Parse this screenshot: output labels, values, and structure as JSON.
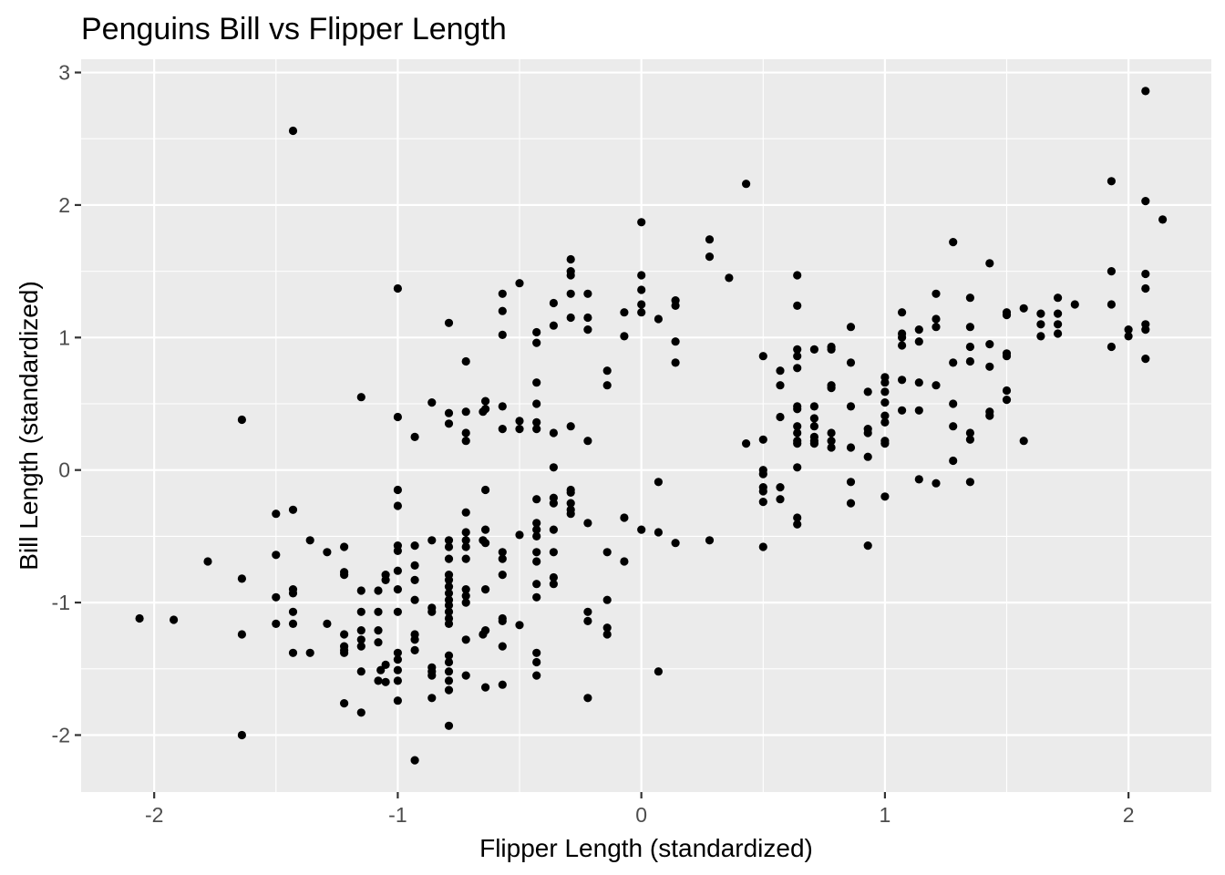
{
  "chart_data": {
    "type": "scatter",
    "title": "Penguins Bill vs Flipper Length",
    "xlabel": "Flipper Length (standardized)",
    "ylabel": "Bill Length (standardized)",
    "xlim": [
      -2.3,
      2.34
    ],
    "ylim": [
      -2.43,
      3.1
    ],
    "x_ticks": [
      -2,
      -1,
      0,
      1,
      2
    ],
    "x_tick_labels": [
      "-2",
      "-1",
      "0",
      "1",
      "2"
    ],
    "y_ticks": [
      -2,
      -1,
      0,
      1,
      2,
      3
    ],
    "y_tick_labels": [
      "-2",
      "-1",
      "0",
      "1",
      "2",
      "3"
    ],
    "grid": true,
    "point_color": "#000000",
    "panel_color": "#ebebeb",
    "points": [
      [
        -2.06,
        -1.12
      ],
      [
        -1.92,
        -1.13
      ],
      [
        -1.78,
        -0.69
      ],
      [
        -1.64,
        0.38
      ],
      [
        -1.64,
        -0.82
      ],
      [
        -1.64,
        -1.24
      ],
      [
        -1.64,
        -2.0
      ],
      [
        -1.5,
        -0.33
      ],
      [
        -1.5,
        -0.64
      ],
      [
        -1.5,
        -0.96
      ],
      [
        -1.5,
        -1.16
      ],
      [
        -1.43,
        2.56
      ],
      [
        -1.43,
        -0.3
      ],
      [
        -1.43,
        -0.9
      ],
      [
        -1.43,
        -0.93
      ],
      [
        -1.43,
        -1.07
      ],
      [
        -1.43,
        -1.16
      ],
      [
        -1.43,
        -1.38
      ],
      [
        -1.36,
        -0.53
      ],
      [
        -1.36,
        -1.38
      ],
      [
        -1.29,
        -0.62
      ],
      [
        -1.29,
        -1.16
      ],
      [
        -1.22,
        -0.58
      ],
      [
        -1.22,
        -0.77
      ],
      [
        -1.22,
        -0.79
      ],
      [
        -1.22,
        -1.24
      ],
      [
        -1.22,
        -1.33
      ],
      [
        -1.22,
        -1.36
      ],
      [
        -1.22,
        -1.38
      ],
      [
        -1.22,
        -1.76
      ],
      [
        -1.15,
        0.55
      ],
      [
        -1.15,
        -0.91
      ],
      [
        -1.15,
        -1.07
      ],
      [
        -1.15,
        -1.21
      ],
      [
        -1.15,
        -1.28
      ],
      [
        -1.15,
        -1.33
      ],
      [
        -1.15,
        -1.52
      ],
      [
        -1.15,
        -1.83
      ],
      [
        -1.08,
        -0.91
      ],
      [
        -1.08,
        -1.07
      ],
      [
        -1.08,
        -1.21
      ],
      [
        -1.08,
        -1.3
      ],
      [
        -1.08,
        -1.59
      ],
      [
        -1.07,
        -1.51
      ],
      [
        -1.05,
        -0.79
      ],
      [
        -1.05,
        -0.83
      ],
      [
        -1.05,
        -1.47
      ],
      [
        -1.05,
        -1.6
      ],
      [
        -1.0,
        1.37
      ],
      [
        -1.0,
        0.4
      ],
      [
        -1.0,
        -0.15
      ],
      [
        -1.0,
        -0.27
      ],
      [
        -1.0,
        -0.57
      ],
      [
        -1.0,
        -0.61
      ],
      [
        -1.0,
        -0.76
      ],
      [
        -1.0,
        -0.9
      ],
      [
        -1.0,
        -1.07
      ],
      [
        -1.0,
        -1.38
      ],
      [
        -1.0,
        -1.43
      ],
      [
        -1.0,
        -1.51
      ],
      [
        -1.0,
        -1.59
      ],
      [
        -1.0,
        -1.74
      ],
      [
        -0.93,
        0.25
      ],
      [
        -0.93,
        -0.57
      ],
      [
        -0.93,
        -0.72
      ],
      [
        -0.93,
        -0.83
      ],
      [
        -0.93,
        -0.98
      ],
      [
        -0.93,
        -1.24
      ],
      [
        -0.93,
        -1.28
      ],
      [
        -0.93,
        -1.36
      ],
      [
        -0.93,
        -2.19
      ],
      [
        -0.86,
        0.51
      ],
      [
        -0.86,
        -0.53
      ],
      [
        -0.86,
        -1.04
      ],
      [
        -0.86,
        -1.07
      ],
      [
        -0.86,
        -1.49
      ],
      [
        -0.86,
        -1.52
      ],
      [
        -0.86,
        -1.55
      ],
      [
        -0.86,
        -1.72
      ],
      [
        -0.79,
        1.11
      ],
      [
        -0.79,
        0.43
      ],
      [
        -0.79,
        0.35
      ],
      [
        -0.79,
        -0.53
      ],
      [
        -0.79,
        -0.58
      ],
      [
        -0.79,
        -0.67
      ],
      [
        -0.79,
        -0.79
      ],
      [
        -0.79,
        -0.83
      ],
      [
        -0.79,
        -0.88
      ],
      [
        -0.79,
        -0.93
      ],
      [
        -0.79,
        -0.98
      ],
      [
        -0.79,
        -1.02
      ],
      [
        -0.79,
        -1.07
      ],
      [
        -0.79,
        -1.12
      ],
      [
        -0.79,
        -1.16
      ],
      [
        -0.79,
        -1.4
      ],
      [
        -0.79,
        -1.45
      ],
      [
        -0.79,
        -1.52
      ],
      [
        -0.79,
        -1.59
      ],
      [
        -0.79,
        -1.66
      ],
      [
        -0.79,
        -1.93
      ],
      [
        -0.72,
        0.82
      ],
      [
        -0.72,
        0.44
      ],
      [
        -0.72,
        0.28
      ],
      [
        -0.72,
        0.22
      ],
      [
        -0.72,
        -0.32
      ],
      [
        -0.72,
        -0.47
      ],
      [
        -0.72,
        -0.53
      ],
      [
        -0.72,
        -0.58
      ],
      [
        -0.72,
        -0.67
      ],
      [
        -0.72,
        -0.9
      ],
      [
        -0.72,
        -0.95
      ],
      [
        -0.72,
        -1.0
      ],
      [
        -0.72,
        -1.28
      ],
      [
        -0.72,
        -1.55
      ],
      [
        -0.65,
        0.44
      ],
      [
        -0.65,
        -0.53
      ],
      [
        -0.65,
        -1.24
      ],
      [
        -0.64,
        0.52
      ],
      [
        -0.64,
        0.46
      ],
      [
        -0.64,
        -0.15
      ],
      [
        -0.64,
        -0.45
      ],
      [
        -0.64,
        -0.55
      ],
      [
        -0.64,
        -0.9
      ],
      [
        -0.64,
        -1.21
      ],
      [
        -0.64,
        -1.64
      ],
      [
        -0.57,
        1.33
      ],
      [
        -0.57,
        1.2
      ],
      [
        -0.57,
        1.02
      ],
      [
        -0.57,
        0.48
      ],
      [
        -0.57,
        0.31
      ],
      [
        -0.57,
        -0.62
      ],
      [
        -0.57,
        -0.67
      ],
      [
        -0.57,
        -0.79
      ],
      [
        -0.57,
        -1.12
      ],
      [
        -0.57,
        -1.14
      ],
      [
        -0.57,
        -1.33
      ],
      [
        -0.57,
        -1.62
      ],
      [
        -0.5,
        1.41
      ],
      [
        -0.5,
        0.37
      ],
      [
        -0.5,
        0.31
      ],
      [
        -0.5,
        -0.49
      ],
      [
        -0.5,
        -1.17
      ],
      [
        -0.43,
        1.04
      ],
      [
        -0.43,
        0.96
      ],
      [
        -0.43,
        0.66
      ],
      [
        -0.43,
        0.5
      ],
      [
        -0.43,
        0.36
      ],
      [
        -0.43,
        0.31
      ],
      [
        -0.43,
        -0.22
      ],
      [
        -0.43,
        -0.4
      ],
      [
        -0.43,
        -0.45
      ],
      [
        -0.43,
        -0.5
      ],
      [
        -0.43,
        -0.62
      ],
      [
        -0.43,
        -0.69
      ],
      [
        -0.43,
        -0.86
      ],
      [
        -0.43,
        -0.96
      ],
      [
        -0.43,
        -1.38
      ],
      [
        -0.43,
        -1.45
      ],
      [
        -0.43,
        -1.55
      ],
      [
        -0.36,
        1.26
      ],
      [
        -0.36,
        1.09
      ],
      [
        -0.36,
        0.28
      ],
      [
        -0.36,
        0.02
      ],
      [
        -0.36,
        -0.21
      ],
      [
        -0.36,
        -0.25
      ],
      [
        -0.36,
        -0.45
      ],
      [
        -0.36,
        -0.62
      ],
      [
        -0.36,
        -0.81
      ],
      [
        -0.36,
        -0.86
      ],
      [
        -0.29,
        1.59
      ],
      [
        -0.29,
        1.5
      ],
      [
        -0.29,
        1.47
      ],
      [
        -0.29,
        1.33
      ],
      [
        -0.29,
        1.15
      ],
      [
        -0.29,
        0.33
      ],
      [
        -0.29,
        -0.15
      ],
      [
        -0.29,
        -0.17
      ],
      [
        -0.29,
        -0.25
      ],
      [
        -0.29,
        -0.3
      ],
      [
        -0.29,
        -0.33
      ],
      [
        -0.22,
        1.33
      ],
      [
        -0.22,
        1.15
      ],
      [
        -0.22,
        1.06
      ],
      [
        -0.22,
        0.22
      ],
      [
        -0.22,
        -0.4
      ],
      [
        -0.22,
        -1.07
      ],
      [
        -0.22,
        -1.14
      ],
      [
        -0.22,
        -1.72
      ],
      [
        -0.14,
        0.75
      ],
      [
        -0.14,
        0.64
      ],
      [
        -0.14,
        -0.62
      ],
      [
        -0.14,
        -0.98
      ],
      [
        -0.14,
        -1.19
      ],
      [
        -0.14,
        -1.24
      ],
      [
        -0.07,
        1.19
      ],
      [
        -0.07,
        1.01
      ],
      [
        -0.07,
        -0.36
      ],
      [
        -0.07,
        -0.69
      ],
      [
        0.0,
        1.87
      ],
      [
        0.0,
        1.47
      ],
      [
        0.0,
        1.36
      ],
      [
        0.0,
        1.25
      ],
      [
        0.0,
        1.19
      ],
      [
        0.0,
        -0.45
      ],
      [
        0.07,
        1.14
      ],
      [
        0.07,
        -0.09
      ],
      [
        0.07,
        -0.47
      ],
      [
        0.07,
        -1.52
      ],
      [
        0.14,
        1.28
      ],
      [
        0.14,
        1.24
      ],
      [
        0.14,
        0.97
      ],
      [
        0.14,
        0.81
      ],
      [
        0.14,
        -0.55
      ],
      [
        0.28,
        1.74
      ],
      [
        0.28,
        1.61
      ],
      [
        0.28,
        -0.53
      ],
      [
        0.36,
        1.45
      ],
      [
        0.43,
        2.16
      ],
      [
        0.43,
        0.2
      ],
      [
        0.5,
        0.86
      ],
      [
        0.5,
        0.23
      ],
      [
        0.5,
        0.0
      ],
      [
        0.5,
        -0.03
      ],
      [
        0.5,
        -0.13
      ],
      [
        0.5,
        -0.16
      ],
      [
        0.5,
        -0.24
      ],
      [
        0.5,
        -0.58
      ],
      [
        0.57,
        0.75
      ],
      [
        0.57,
        0.64
      ],
      [
        0.57,
        0.4
      ],
      [
        0.57,
        -0.13
      ],
      [
        0.57,
        -0.22
      ],
      [
        0.64,
        1.47
      ],
      [
        0.64,
        1.24
      ],
      [
        0.64,
        0.91
      ],
      [
        0.64,
        0.86
      ],
      [
        0.64,
        0.77
      ],
      [
        0.64,
        0.48
      ],
      [
        0.64,
        0.46
      ],
      [
        0.64,
        0.33
      ],
      [
        0.64,
        0.28
      ],
      [
        0.64,
        0.22
      ],
      [
        0.64,
        0.2
      ],
      [
        0.64,
        0.02
      ],
      [
        0.64,
        -0.36
      ],
      [
        0.64,
        -0.41
      ],
      [
        0.71,
        0.91
      ],
      [
        0.71,
        0.48
      ],
      [
        0.71,
        0.39
      ],
      [
        0.71,
        0.33
      ],
      [
        0.71,
        0.25
      ],
      [
        0.71,
        0.22
      ],
      [
        0.71,
        0.2
      ],
      [
        0.78,
        0.93
      ],
      [
        0.78,
        0.91
      ],
      [
        0.78,
        0.64
      ],
      [
        0.78,
        0.62
      ],
      [
        0.78,
        0.28
      ],
      [
        0.78,
        0.22
      ],
      [
        0.78,
        0.17
      ],
      [
        0.86,
        1.08
      ],
      [
        0.86,
        0.81
      ],
      [
        0.86,
        0.48
      ],
      [
        0.86,
        0.17
      ],
      [
        0.86,
        -0.09
      ],
      [
        0.86,
        -0.25
      ],
      [
        0.93,
        0.59
      ],
      [
        0.93,
        0.31
      ],
      [
        0.93,
        0.28
      ],
      [
        0.93,
        0.1
      ],
      [
        0.93,
        -0.57
      ],
      [
        1.0,
        0.7
      ],
      [
        1.0,
        0.66
      ],
      [
        1.0,
        0.59
      ],
      [
        1.0,
        0.51
      ],
      [
        1.0,
        0.41
      ],
      [
        1.0,
        0.36
      ],
      [
        1.0,
        0.22
      ],
      [
        1.0,
        0.2
      ],
      [
        1.0,
        -0.2
      ],
      [
        1.07,
        1.19
      ],
      [
        1.07,
        1.03
      ],
      [
        1.07,
        1.0
      ],
      [
        1.07,
        0.94
      ],
      [
        1.07,
        0.68
      ],
      [
        1.07,
        0.45
      ],
      [
        1.14,
        1.06
      ],
      [
        1.14,
        0.97
      ],
      [
        1.14,
        0.66
      ],
      [
        1.14,
        0.45
      ],
      [
        1.14,
        -0.07
      ],
      [
        1.21,
        1.33
      ],
      [
        1.21,
        1.14
      ],
      [
        1.21,
        1.08
      ],
      [
        1.21,
        0.64
      ],
      [
        1.21,
        -0.1
      ],
      [
        1.28,
        1.72
      ],
      [
        1.28,
        0.81
      ],
      [
        1.28,
        0.5
      ],
      [
        1.28,
        0.33
      ],
      [
        1.28,
        0.07
      ],
      [
        1.35,
        1.3
      ],
      [
        1.35,
        1.08
      ],
      [
        1.35,
        0.93
      ],
      [
        1.35,
        0.82
      ],
      [
        1.35,
        0.28
      ],
      [
        1.35,
        0.23
      ],
      [
        1.35,
        -0.09
      ],
      [
        1.43,
        1.56
      ],
      [
        1.43,
        0.95
      ],
      [
        1.43,
        0.78
      ],
      [
        1.43,
        0.44
      ],
      [
        1.43,
        0.41
      ],
      [
        1.5,
        1.19
      ],
      [
        1.5,
        1.17
      ],
      [
        1.5,
        0.88
      ],
      [
        1.5,
        0.86
      ],
      [
        1.5,
        0.6
      ],
      [
        1.5,
        0.53
      ],
      [
        1.57,
        1.22
      ],
      [
        1.57,
        0.22
      ],
      [
        1.64,
        1.18
      ],
      [
        1.64,
        1.1
      ],
      [
        1.64,
        1.01
      ],
      [
        1.71,
        1.3
      ],
      [
        1.71,
        1.18
      ],
      [
        1.71,
        1.1
      ],
      [
        1.71,
        1.03
      ],
      [
        1.78,
        1.25
      ],
      [
        1.93,
        2.18
      ],
      [
        1.93,
        1.5
      ],
      [
        1.93,
        1.25
      ],
      [
        1.93,
        0.93
      ],
      [
        2.0,
        1.06
      ],
      [
        2.0,
        1.01
      ],
      [
        2.07,
        2.86
      ],
      [
        2.07,
        2.03
      ],
      [
        2.07,
        1.48
      ],
      [
        2.07,
        1.37
      ],
      [
        2.07,
        1.1
      ],
      [
        2.07,
        1.06
      ],
      [
        2.07,
        0.84
      ],
      [
        2.14,
        1.89
      ]
    ]
  }
}
